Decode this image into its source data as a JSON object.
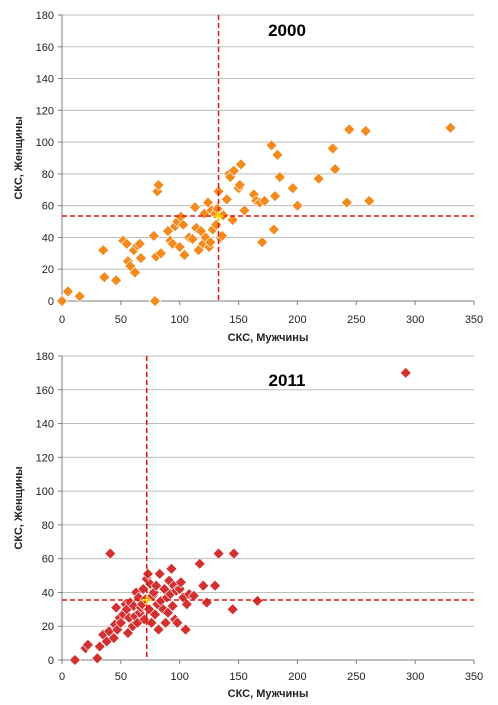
{
  "chart_data": [
    {
      "type": "scatter",
      "title": "2000",
      "xlabel": "СКС, Мужчины",
      "ylabel": "СКС, Женщины",
      "xlim": [
        0,
        350
      ],
      "ylim": [
        0,
        180
      ],
      "xticks": [
        0,
        50,
        100,
        150,
        200,
        250,
        300,
        350
      ],
      "yticks": [
        0,
        20,
        40,
        60,
        80,
        100,
        120,
        140,
        160,
        180
      ],
      "grid": true,
      "marker_color": "#f28a1e",
      "ref_color": "#e3120b",
      "mean_x": 133,
      "mean_y": 53.5,
      "points": [
        [
          0,
          0
        ],
        [
          5,
          6
        ],
        [
          15,
          3
        ],
        [
          35,
          32
        ],
        [
          36,
          15
        ],
        [
          46,
          13
        ],
        [
          52,
          38
        ],
        [
          55,
          36
        ],
        [
          56,
          25
        ],
        [
          58,
          22
        ],
        [
          61,
          32
        ],
        [
          62,
          18
        ],
        [
          64,
          35
        ],
        [
          66,
          36
        ],
        [
          67,
          27
        ],
        [
          78,
          41
        ],
        [
          79,
          0
        ],
        [
          80,
          28
        ],
        [
          81,
          69
        ],
        [
          82,
          73
        ],
        [
          84,
          30
        ],
        [
          90,
          44
        ],
        [
          92,
          38
        ],
        [
          94,
          36
        ],
        [
          96,
          47
        ],
        [
          98,
          50
        ],
        [
          100,
          34
        ],
        [
          101,
          53
        ],
        [
          103,
          48
        ],
        [
          104,
          29
        ],
        [
          108,
          40
        ],
        [
          111,
          39
        ],
        [
          113,
          59
        ],
        [
          114,
          46
        ],
        [
          116,
          32
        ],
        [
          118,
          44
        ],
        [
          120,
          36
        ],
        [
          121,
          55
        ],
        [
          122,
          40
        ],
        [
          124,
          62
        ],
        [
          125,
          34
        ],
        [
          126,
          37
        ],
        [
          127,
          57
        ],
        [
          128,
          45
        ],
        [
          130,
          55
        ],
        [
          131,
          48
        ],
        [
          132,
          58
        ],
        [
          133,
          69
        ],
        [
          135,
          40
        ],
        [
          136,
          41
        ],
        [
          137,
          54
        ],
        [
          140,
          64
        ],
        [
          142,
          80
        ],
        [
          143,
          78
        ],
        [
          145,
          51
        ],
        [
          146,
          82
        ],
        [
          150,
          71
        ],
        [
          151,
          73
        ],
        [
          152,
          86
        ],
        [
          155,
          57
        ],
        [
          163,
          67
        ],
        [
          165,
          63
        ],
        [
          168,
          62
        ],
        [
          170,
          37
        ],
        [
          172,
          63
        ],
        [
          178,
          98
        ],
        [
          180,
          45
        ],
        [
          181,
          66
        ],
        [
          183,
          92
        ],
        [
          185,
          78
        ],
        [
          196,
          71
        ],
        [
          200,
          60
        ],
        [
          218,
          77
        ],
        [
          230,
          96
        ],
        [
          232,
          83
        ],
        [
          242,
          62
        ],
        [
          244,
          108
        ],
        [
          258,
          107
        ],
        [
          261,
          63
        ],
        [
          330,
          109
        ]
      ]
    },
    {
      "type": "scatter",
      "title": "2011",
      "xlabel": "СКС, Мужчины",
      "ylabel": "СКС, Женщины",
      "xlim": [
        0,
        350
      ],
      "ylim": [
        0,
        180
      ],
      "xticks": [
        0,
        50,
        100,
        150,
        200,
        250,
        300,
        350
      ],
      "yticks": [
        0,
        20,
        40,
        60,
        80,
        100,
        120,
        140,
        160,
        180
      ],
      "grid": true,
      "marker_color": "#d33131",
      "ref_color": "#e3120b",
      "mean_x": 72,
      "mean_y": 35.5,
      "points": [
        [
          11,
          0
        ],
        [
          20,
          7
        ],
        [
          22,
          9
        ],
        [
          30,
          1
        ],
        [
          32,
          8
        ],
        [
          35,
          15
        ],
        [
          38,
          11
        ],
        [
          40,
          17
        ],
        [
          41,
          63
        ],
        [
          44,
          13
        ],
        [
          45,
          21
        ],
        [
          46,
          31
        ],
        [
          47,
          18
        ],
        [
          49,
          25
        ],
        [
          50,
          22
        ],
        [
          52,
          27
        ],
        [
          54,
          33
        ],
        [
          55,
          30
        ],
        [
          56,
          16
        ],
        [
          57,
          25
        ],
        [
          58,
          34
        ],
        [
          60,
          20
        ],
        [
          61,
          32
        ],
        [
          62,
          26
        ],
        [
          63,
          40
        ],
        [
          64,
          22
        ],
        [
          65,
          37
        ],
        [
          66,
          28
        ],
        [
          67,
          31
        ],
        [
          68,
          33
        ],
        [
          69,
          42
        ],
        [
          70,
          24
        ],
        [
          71,
          36
        ],
        [
          72,
          48
        ],
        [
          73,
          51
        ],
        [
          74,
          30
        ],
        [
          75,
          45
        ],
        [
          76,
          22
        ],
        [
          77,
          38
        ],
        [
          78,
          40
        ],
        [
          79,
          27
        ],
        [
          80,
          44
        ],
        [
          81,
          33
        ],
        [
          82,
          18
        ],
        [
          83,
          51
        ],
        [
          84,
          35
        ],
        [
          86,
          30
        ],
        [
          87,
          42
        ],
        [
          88,
          22
        ],
        [
          89,
          37
        ],
        [
          90,
          28
        ],
        [
          91,
          47
        ],
        [
          92,
          39
        ],
        [
          93,
          54
        ],
        [
          94,
          32
        ],
        [
          95,
          44
        ],
        [
          96,
          24
        ],
        [
          97,
          41
        ],
        [
          98,
          22
        ],
        [
          100,
          42
        ],
        [
          101,
          46
        ],
        [
          103,
          37
        ],
        [
          105,
          18
        ],
        [
          106,
          33
        ],
        [
          108,
          39
        ],
        [
          112,
          38
        ],
        [
          117,
          57
        ],
        [
          120,
          44
        ],
        [
          123,
          34
        ],
        [
          130,
          44
        ],
        [
          133,
          63
        ],
        [
          145,
          30
        ],
        [
          146,
          63
        ],
        [
          166,
          35
        ],
        [
          292,
          170
        ]
      ]
    }
  ]
}
